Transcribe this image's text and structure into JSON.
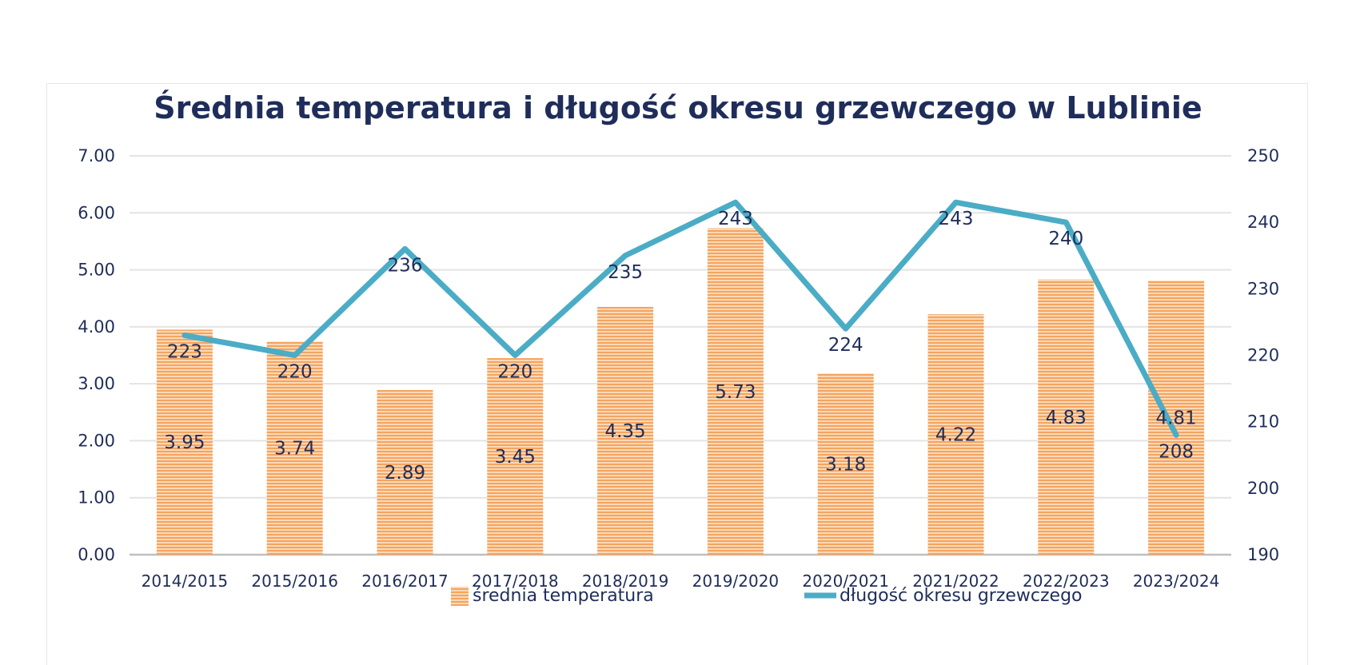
{
  "chart_data": {
    "type": "bar",
    "title": "Średnia temperatura i długość okresu grzewczego w Lublinie",
    "categories": [
      "2014/2015",
      "2015/2016",
      "2016/2017",
      "2017/2018",
      "2018/2019",
      "2019/2020",
      "2020/2021",
      "2021/2022",
      "2022/2023",
      "2023/2024"
    ],
    "series": [
      {
        "name": "średnia temperatura",
        "kind": "bar",
        "axis": "left",
        "color": "#f4a460",
        "pattern": "horizontal-stripes",
        "values": [
          3.95,
          3.74,
          2.89,
          3.45,
          4.35,
          5.73,
          3.18,
          4.22,
          4.83,
          4.81
        ],
        "labels": [
          "3.95",
          "3.74",
          "2.89",
          "3.45",
          "4.35",
          "5.73",
          "3.18",
          "4.22",
          "4.83",
          "4.81"
        ]
      },
      {
        "name": "długość okresu grzewczego",
        "kind": "line",
        "axis": "right",
        "color": "#4bacc6",
        "values": [
          223,
          220,
          236,
          220,
          235,
          243,
          224,
          243,
          240,
          208
        ],
        "labels": [
          "223",
          "220",
          "236",
          "220",
          "235",
          "243",
          "224",
          "243",
          "240",
          "208"
        ]
      }
    ],
    "y_left": {
      "ylim": [
        0,
        7
      ],
      "ticks": [
        "0.00",
        "1.00",
        "2.00",
        "3.00",
        "4.00",
        "5.00",
        "6.00",
        "7.00"
      ]
    },
    "y_right": {
      "ylim": [
        190,
        250
      ],
      "ticks": [
        "190",
        "200",
        "210",
        "220",
        "230",
        "240",
        "250"
      ]
    },
    "grid": true,
    "legend_position": "bottom"
  }
}
